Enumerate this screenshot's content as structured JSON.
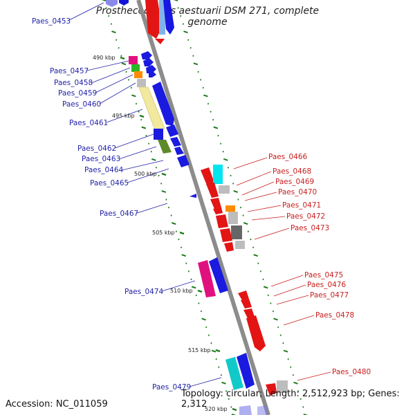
{
  "title": "Prosthecochloris aestuarii DSM 271, complete genome",
  "footer": {
    "accession": "Accession: NC_011059",
    "stats": "Topology: circular; Length: 2,512,923 bp; Genes: 2,312"
  },
  "colors": {
    "backbone": "#8c8c8c",
    "tick": "#1e7a1e",
    "left_label": "#1f1fa8",
    "right_label": "#c81e1e"
  },
  "kbp_markers": [
    "490 kbp",
    "495 kbp",
    "500 kbp",
    "505 kbp",
    "510 kbp",
    "515 kbp",
    "520 kbp"
  ],
  "left_genes": [
    "Paes_0453",
    "Paes_0457",
    "Paes_0458",
    "Paes_0459",
    "Paes_0460",
    "Paes_0461",
    "Paes_0462",
    "Paes_0463",
    "Paes_0464",
    "Paes_0465",
    "Paes_0467",
    "Paes_0474",
    "Paes_0479"
  ],
  "right_genes": [
    "Paes_0466",
    "Paes_0468",
    "Paes_0469",
    "Paes_0470",
    "Paes_0471",
    "Paes_0472",
    "Paes_0473",
    "Paes_0475",
    "Paes_0476",
    "Paes_0477",
    "Paes_0478",
    "Paes_0480"
  ]
}
